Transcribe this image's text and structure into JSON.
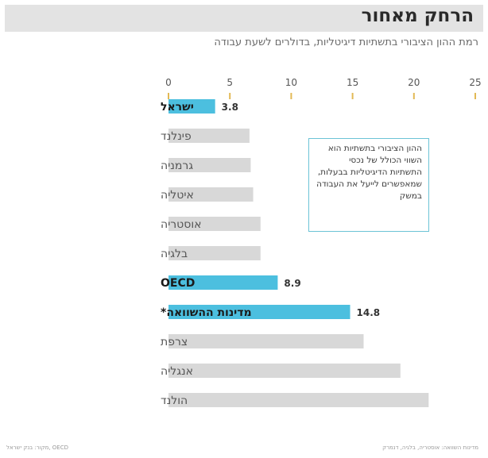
{
  "title": "הרחק מאחור",
  "subtitle": "רמת ההון הציבורי בתשתיות דיגיטליות, בדולרים לשעת עבודה",
  "note": "ההון הציבורי בתשתיות הוא השווי הכולל של נכסי התשתיות הדיגיטליות בבעלות, שמאפשרים לייעל את העבודה במשק",
  "footer_left": "מקור: בנק ישראל, OECD",
  "footer_right": "מדינות השוואה: אוסטריה, בלגיה, דנמרק",
  "chart_data": {
    "type": "bar",
    "orientation": "horizontal",
    "xlim": [
      0,
      25
    ],
    "xticks": [
      0,
      5,
      10,
      15,
      20,
      25
    ],
    "categories": [
      "ישראל",
      "פינלנד",
      "גרמניה",
      "איטליה",
      "אוסטריה",
      "בלגיה",
      "OECD",
      "מדינות ההשוואה*",
      "צרפת",
      "אנגליה",
      "הולנד"
    ],
    "values": [
      3.8,
      6.6,
      6.7,
      6.9,
      7.5,
      7.5,
      8.9,
      14.8,
      15.9,
      18.9,
      21.2
    ],
    "value_labels": [
      "3.8",
      null,
      null,
      null,
      null,
      null,
      "8.9",
      "14.8",
      null,
      null,
      null
    ],
    "highlighted": [
      true,
      false,
      false,
      false,
      false,
      false,
      true,
      true,
      false,
      false,
      false
    ],
    "colors": {
      "highlight": "#4cbfdf",
      "default": "#d8d8d8",
      "tick": "#e2b955"
    },
    "grid": false
  }
}
